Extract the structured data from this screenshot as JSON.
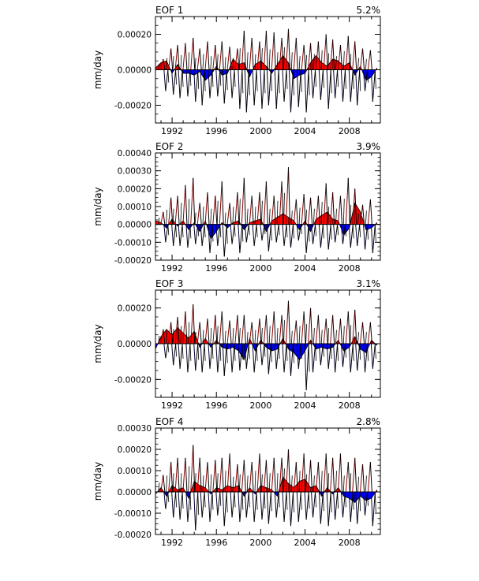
{
  "figure": {
    "ylabel": "mm/day",
    "xtick_labels": [
      "1992",
      "1996",
      "2000",
      "2004",
      "2008"
    ],
    "pos_color": "#ff0000",
    "neg_color": "#0000ff",
    "line_color": "#000000"
  },
  "chart_data": [
    {
      "type": "area",
      "title": "EOF 1",
      "percent_label": "5.2%",
      "xlabel": "",
      "ylabel": "mm/day",
      "xlim": [
        1990.5,
        2010.8
      ],
      "ylim": [
        -0.0003,
        0.0003
      ],
      "xticks": [
        1992,
        1996,
        2000,
        2004,
        2008
      ],
      "yticks": [
        -0.0002,
        0.0,
        0.0002
      ],
      "ytick_labels": [
        "-0.00020",
        "0.00000",
        "0.00020"
      ],
      "x": [
        1990.5,
        1991.0,
        1991.5,
        1992.0,
        1992.5,
        1993.0,
        1993.5,
        1994.0,
        1994.5,
        1995.0,
        1995.5,
        1996.0,
        1996.5,
        1997.0,
        1997.5,
        1998.0,
        1998.5,
        1999.0,
        1999.5,
        2000.0,
        2000.5,
        2001.0,
        2001.5,
        2002.0,
        2002.5,
        2003.0,
        2003.5,
        2004.0,
        2004.5,
        2005.0,
        2005.5,
        2006.0,
        2006.5,
        2007.0,
        2007.5,
        2008.0,
        2008.5,
        2009.0,
        2009.5,
        2010.0,
        2010.5
      ],
      "values": [
        1e-05,
        4e-05,
        5e-05,
        -2e-05,
        3e-05,
        -2e-05,
        -2e-05,
        -3e-05,
        -1e-05,
        -6e-05,
        -3e-05,
        2e-05,
        -3e-05,
        -2e-05,
        6e-05,
        3e-05,
        4e-05,
        -4e-05,
        3e-05,
        5e-05,
        2e-05,
        -2e-05,
        3e-05,
        8e-05,
        4e-05,
        -5e-05,
        -3e-05,
        -2e-05,
        4e-05,
        8e-05,
        4e-05,
        2e-05,
        6e-05,
        5e-05,
        2e-05,
        4e-05,
        -3e-05,
        2e-05,
        -6e-05,
        -4e-05,
        1e-05
      ],
      "spikes": {
        "x": [
          1991.2,
          1991.9,
          1992.5,
          1993.2,
          1993.9,
          1994.5,
          1995.2,
          1995.9,
          1996.5,
          1997.2,
          1997.9,
          1998.5,
          1999.2,
          1999.9,
          2000.5,
          2001.2,
          2001.9,
          2002.5,
          2003.2,
          2003.9,
          2004.5,
          2005.2,
          2005.9,
          2006.5,
          2007.2,
          2007.9,
          2008.5,
          2009.2,
          2009.9
        ],
        "max": [
          6e-05,
          0.00012,
          0.00014,
          0.00015,
          0.00018,
          0.00012,
          0.00016,
          0.00014,
          0.00016,
          0.00013,
          0.00012,
          0.00022,
          0.00018,
          0.00016,
          0.00022,
          0.00021,
          0.00018,
          0.00023,
          0.00018,
          0.00014,
          0.00015,
          0.00016,
          0.0002,
          0.00017,
          0.00014,
          0.00019,
          0.00016,
          0.00012,
          0.00011
        ],
        "min": [
          -0.00012,
          -0.00014,
          -0.00016,
          -0.00015,
          -0.00018,
          -0.0002,
          -0.00016,
          -0.00015,
          -0.00019,
          -0.00016,
          -0.00022,
          -0.00024,
          -0.0002,
          -0.00022,
          -0.0002,
          -0.00022,
          -0.00018,
          -0.00024,
          -0.00021,
          -0.00024,
          -0.00016,
          -0.00017,
          -0.00022,
          -0.00016,
          -0.00018,
          -0.00018,
          -0.0002,
          -0.00012,
          -0.00018
        ]
      }
    },
    {
      "type": "area",
      "title": "EOF 2",
      "percent_label": "3.9%",
      "xlabel": "",
      "ylabel": "mm/day",
      "xlim": [
        1990.5,
        2010.8
      ],
      "ylim": [
        -0.0002,
        0.0004
      ],
      "xticks": [
        1992,
        1996,
        2000,
        2004,
        2008
      ],
      "yticks": [
        -0.0002,
        -0.0001,
        0.0,
        0.0001,
        0.0002,
        0.0003,
        0.0004
      ],
      "ytick_labels": [
        "-0.00020",
        "-0.00010",
        "0.00000",
        "0.00010",
        "0.00020",
        "0.00030",
        "0.00040"
      ],
      "x": [
        1990.5,
        1991.0,
        1991.5,
        1992.0,
        1992.5,
        1993.0,
        1993.5,
        1994.0,
        1994.5,
        1995.0,
        1995.5,
        1996.0,
        1996.5,
        1997.0,
        1997.5,
        1998.0,
        1998.5,
        1999.0,
        1999.5,
        2000.0,
        2000.5,
        2001.0,
        2001.5,
        2002.0,
        2002.5,
        2003.0,
        2003.5,
        2004.0,
        2004.5,
        2005.0,
        2005.5,
        2006.0,
        2006.5,
        2007.0,
        2007.5,
        2008.0,
        2008.5,
        2009.0,
        2009.5,
        2010.0,
        2010.5
      ],
      "values": [
        2e-05,
        1e-05,
        -2e-05,
        3e-05,
        -1e-05,
        2e-05,
        -3e-05,
        1e-05,
        -4e-05,
        2e-05,
        -8e-05,
        -4e-05,
        1e-05,
        -2e-05,
        1e-05,
        2e-05,
        -3e-05,
        1e-05,
        2e-05,
        3e-05,
        -4e-05,
        2e-05,
        4e-05,
        6e-05,
        4e-05,
        2e-05,
        -3e-05,
        2e-05,
        -4e-05,
        3e-05,
        5e-05,
        7e-05,
        3e-05,
        2e-05,
        -6e-05,
        -2e-05,
        0.00012,
        7e-05,
        -3e-05,
        -2e-05,
        1e-05
      ],
      "spikes": {
        "x": [
          1991.2,
          1991.9,
          1992.5,
          1993.2,
          1993.9,
          1994.5,
          1995.2,
          1995.9,
          1996.5,
          1997.2,
          1997.9,
          1998.5,
          1999.2,
          1999.9,
          2000.5,
          2001.2,
          2001.9,
          2002.5,
          2003.2,
          2003.9,
          2004.5,
          2005.2,
          2005.9,
          2006.5,
          2007.2,
          2007.9,
          2008.5,
          2009.2,
          2009.9
        ],
        "max": [
          7e-05,
          0.00015,
          0.00016,
          0.00022,
          0.00026,
          0.00012,
          0.00018,
          0.00016,
          0.00024,
          0.00012,
          0.00018,
          0.00026,
          0.00016,
          0.00018,
          0.00024,
          0.00016,
          0.00024,
          0.00032,
          0.00014,
          0.00017,
          0.00015,
          0.00016,
          0.00023,
          0.00018,
          0.00016,
          0.00026,
          0.0002,
          0.00011,
          0.00014
        ],
        "min": [
          -0.0001,
          -0.00012,
          -0.00012,
          -0.00013,
          -0.00011,
          -0.00012,
          -0.00016,
          -0.00012,
          -0.00018,
          -0.00011,
          -0.00016,
          -0.0001,
          -0.00012,
          -9e-05,
          -0.00015,
          -0.0001,
          -0.00012,
          -0.00013,
          -9e-05,
          -0.00016,
          -0.00011,
          -0.00013,
          -0.00014,
          -0.0001,
          -0.00011,
          -0.00013,
          -0.00012,
          -0.00014,
          -0.00016
        ]
      }
    },
    {
      "type": "area",
      "title": "EOF 3",
      "percent_label": "3.1%",
      "xlabel": "",
      "ylabel": "mm/day",
      "xlim": [
        1990.5,
        2010.8
      ],
      "ylim": [
        -0.0003,
        0.0003
      ],
      "xticks": [
        1992,
        1996,
        2000,
        2004,
        2008
      ],
      "yticks": [
        -0.0002,
        0.0,
        0.0002
      ],
      "ytick_labels": [
        "-0.00020",
        "0.00000",
        "0.00020"
      ],
      "x": [
        1990.5,
        1991.0,
        1991.5,
        1992.0,
        1992.5,
        1993.0,
        1993.5,
        1994.0,
        1994.5,
        1995.0,
        1995.5,
        1996.0,
        1996.5,
        1997.0,
        1997.5,
        1998.0,
        1998.5,
        1999.0,
        1999.5,
        2000.0,
        2000.5,
        2001.0,
        2001.5,
        2002.0,
        2002.5,
        2003.0,
        2003.5,
        2004.0,
        2004.5,
        2005.0,
        2005.5,
        2006.0,
        2006.5,
        2007.0,
        2007.5,
        2008.0,
        2008.5,
        2009.0,
        2009.5,
        2010.0,
        2010.5
      ],
      "values": [
        -3e-05,
        4e-05,
        8e-05,
        5e-05,
        9e-05,
        6e-05,
        3e-05,
        7e-05,
        -2e-05,
        3e-05,
        -2e-05,
        2e-05,
        -2e-05,
        -3e-05,
        -2e-05,
        -4e-05,
        -9e-05,
        3e-05,
        -4e-05,
        2e-05,
        -2e-05,
        -4e-05,
        -3e-05,
        3e-05,
        -3e-05,
        -5e-05,
        -9e-05,
        -4e-05,
        2e-05,
        -3e-05,
        -2e-05,
        -3e-05,
        -2e-05,
        2e-05,
        -4e-05,
        -2e-05,
        4e-05,
        -3e-05,
        -5e-05,
        2e-05,
        -1e-05
      ],
      "spikes": {
        "x": [
          1991.2,
          1991.9,
          1992.5,
          1993.2,
          1993.9,
          1994.5,
          1995.2,
          1995.9,
          1996.5,
          1997.2,
          1997.9,
          1998.5,
          1999.2,
          1999.9,
          2000.5,
          2001.2,
          2001.9,
          2002.5,
          2003.2,
          2003.9,
          2004.5,
          2005.2,
          2005.9,
          2006.5,
          2007.2,
          2007.9,
          2008.5,
          2009.2,
          2009.9
        ],
        "max": [
          8e-05,
          0.00012,
          0.00015,
          0.00018,
          0.00022,
          0.00012,
          0.00014,
          0.00016,
          0.00018,
          0.00013,
          0.00016,
          0.00016,
          0.00012,
          0.00014,
          0.00016,
          0.00018,
          0.00016,
          0.00024,
          0.00013,
          0.00018,
          0.0002,
          0.00016,
          0.00014,
          0.00016,
          0.00014,
          0.00018,
          0.00019,
          0.00012,
          0.00012
        ],
        "min": [
          -8e-05,
          -0.00012,
          -0.00014,
          -0.00016,
          -0.00015,
          -0.00016,
          -0.00014,
          -0.00016,
          -0.00018,
          -0.00016,
          -0.00015,
          -0.00014,
          -0.00016,
          -0.00012,
          -0.00017,
          -0.00014,
          -0.00016,
          -0.00018,
          -0.00014,
          -0.00026,
          -0.00016,
          -0.00012,
          -0.00014,
          -0.00016,
          -0.00013,
          -0.00016,
          -0.00015,
          -0.00016,
          -0.00014
        ]
      }
    },
    {
      "type": "area",
      "title": "EOF 4",
      "percent_label": "2.8%",
      "xlabel": "",
      "ylabel": "mm/day",
      "xlim": [
        1990.5,
        2010.8
      ],
      "ylim": [
        -0.0002,
        0.0003
      ],
      "xticks": [
        1992,
        1996,
        2000,
        2004,
        2008
      ],
      "yticks": [
        -0.0002,
        -0.0001,
        0.0,
        0.0001,
        0.0002,
        0.0003
      ],
      "ytick_labels": [
        "-0.00020",
        "-0.00010",
        "0.00000",
        "0.00010",
        "0.00020",
        "0.00030"
      ],
      "x": [
        1990.5,
        1991.0,
        1991.5,
        1992.0,
        1992.5,
        1993.0,
        1993.5,
        1994.0,
        1994.5,
        1995.0,
        1995.5,
        1996.0,
        1996.5,
        1997.0,
        1997.5,
        1998.0,
        1998.5,
        1999.0,
        1999.5,
        2000.0,
        2000.5,
        2001.0,
        2001.5,
        2002.0,
        2002.5,
        2003.0,
        2003.5,
        2004.0,
        2004.5,
        2005.0,
        2005.5,
        2006.0,
        2006.5,
        2007.0,
        2007.5,
        2008.0,
        2008.5,
        2009.0,
        2009.5,
        2010.0,
        2010.5
      ],
      "values": [
        -1e-05,
        2e-05,
        -2e-05,
        3e-05,
        1e-05,
        2e-05,
        -3e-05,
        5e-05,
        3e-05,
        2e-05,
        -1e-05,
        2e-05,
        1e-05,
        3e-05,
        2e-05,
        3e-05,
        -2e-05,
        2e-05,
        -1e-05,
        3e-05,
        2e-05,
        1e-05,
        -2e-05,
        7e-05,
        4e-05,
        2e-05,
        5e-05,
        6e-05,
        2e-05,
        3e-05,
        -2e-05,
        2e-05,
        -1e-05,
        2e-05,
        -2e-05,
        -3e-05,
        -5e-05,
        -2e-05,
        -4e-05,
        -3e-05,
        1e-05
      ],
      "spikes": {
        "x": [
          1991.2,
          1991.9,
          1992.5,
          1993.2,
          1993.9,
          1994.5,
          1995.2,
          1995.9,
          1996.5,
          1997.2,
          1997.9,
          1998.5,
          1999.2,
          1999.9,
          2000.5,
          2001.2,
          2001.9,
          2002.5,
          2003.2,
          2003.9,
          2004.5,
          2005.2,
          2005.9,
          2006.5,
          2007.2,
          2007.9,
          2008.5,
          2009.2,
          2009.9
        ],
        "max": [
          8e-05,
          0.00014,
          0.00016,
          0.00016,
          0.00022,
          0.00016,
          0.00014,
          0.00015,
          0.00016,
          0.00018,
          0.00013,
          0.00015,
          0.00014,
          0.00018,
          0.00015,
          0.00016,
          0.00016,
          0.0002,
          0.00014,
          0.00018,
          0.00015,
          0.00014,
          0.00018,
          0.00016,
          0.00018,
          0.00014,
          0.00016,
          0.00013,
          0.00014
        ],
        "min": [
          -8e-05,
          -0.00012,
          -0.00013,
          -0.00014,
          -0.00018,
          -0.00012,
          -0.00014,
          -0.00011,
          -0.00016,
          -0.00012,
          -0.00014,
          -0.00012,
          -0.00014,
          -0.00013,
          -0.00015,
          -0.00012,
          -0.00014,
          -0.00016,
          -0.00014,
          -0.00013,
          -0.00012,
          -0.00015,
          -0.00016,
          -0.00013,
          -0.00012,
          -0.00014,
          -0.00015,
          -0.00011,
          -0.00016
        ]
      }
    }
  ]
}
